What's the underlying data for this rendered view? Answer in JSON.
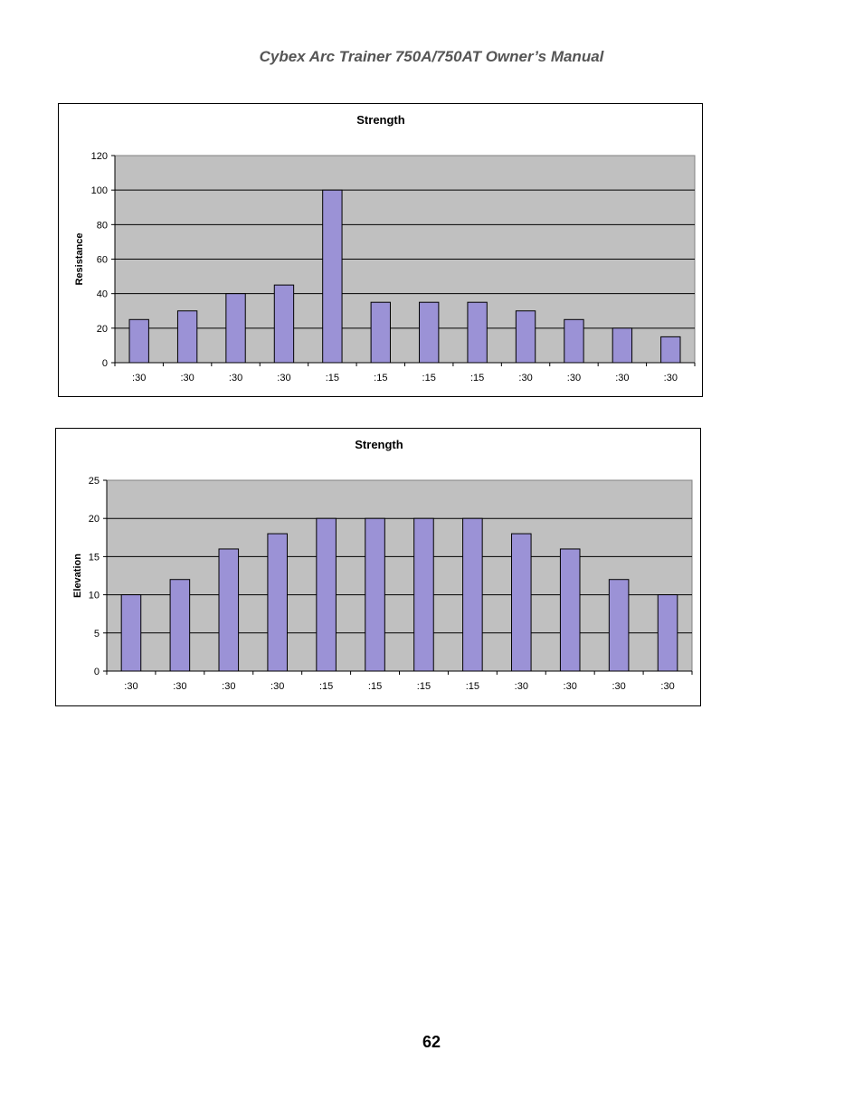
{
  "page": {
    "header": "Cybex Arc Trainer 750A/750AT Owner’s Manual",
    "page_number": "62"
  },
  "chart_data": [
    {
      "type": "bar",
      "title": "Strength",
      "xlabel": "",
      "ylabel": "Resistance",
      "categories": [
        ":30",
        ":30",
        ":30",
        ":30",
        ":15",
        ":15",
        ":15",
        ":15",
        ":30",
        ":30",
        ":30",
        ":30"
      ],
      "values": [
        25,
        30,
        40,
        45,
        100,
        35,
        35,
        35,
        30,
        25,
        20,
        15
      ],
      "ylim": [
        0,
        120
      ],
      "yticks": [
        0,
        20,
        40,
        60,
        80,
        100,
        120
      ],
      "grid": true,
      "legend": "none",
      "colors": {
        "bar": "#9b92d6",
        "plot_background": "#c0c0c0",
        "gridline": "#000000"
      }
    },
    {
      "type": "bar",
      "title": "Strength",
      "xlabel": "",
      "ylabel": "Elevation",
      "categories": [
        ":30",
        ":30",
        ":30",
        ":30",
        ":15",
        ":15",
        ":15",
        ":15",
        ":30",
        ":30",
        ":30",
        ":30"
      ],
      "values": [
        10,
        12,
        16,
        18,
        20,
        20,
        20,
        20,
        18,
        16,
        12,
        10
      ],
      "ylim": [
        0,
        25
      ],
      "yticks": [
        0,
        5,
        10,
        15,
        20,
        25
      ],
      "grid": true,
      "legend": "none",
      "colors": {
        "bar": "#9b92d6",
        "plot_background": "#c0c0c0",
        "gridline": "#000000"
      }
    }
  ]
}
